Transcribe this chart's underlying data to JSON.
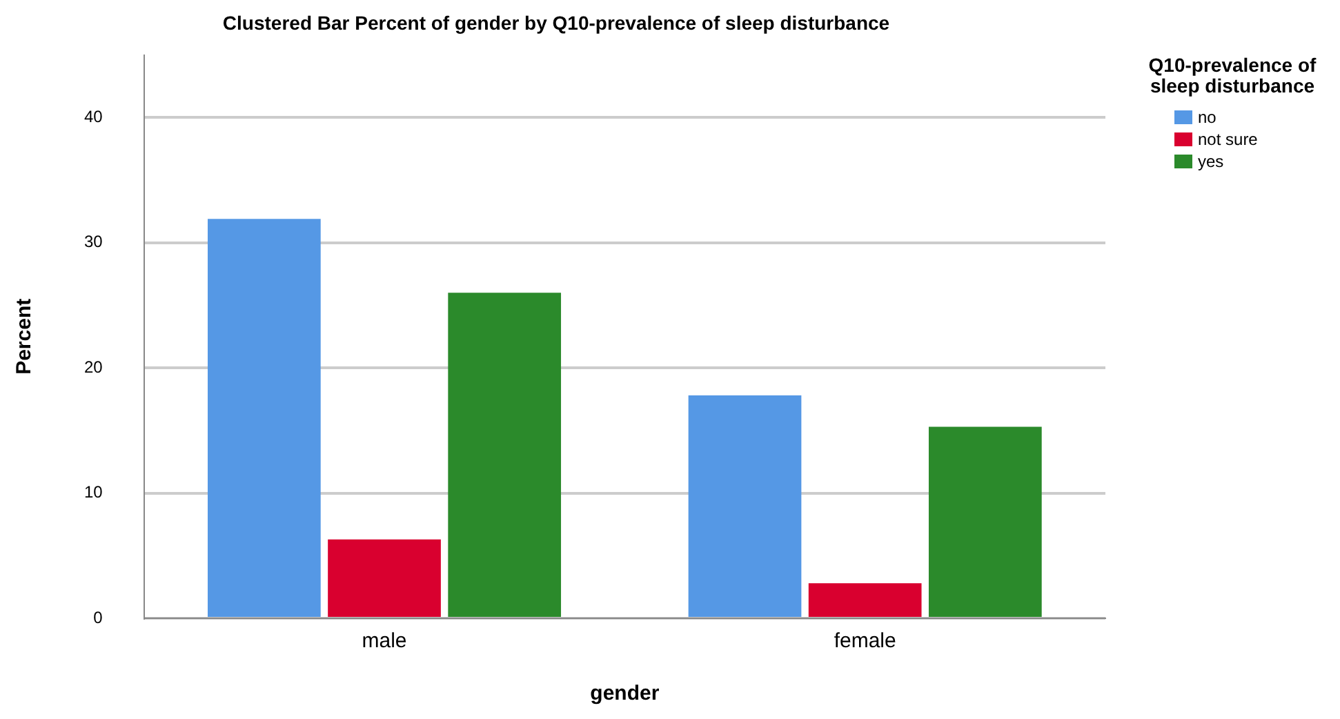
{
  "chart_data": {
    "type": "bar",
    "title": "Clustered Bar Percent of gender by Q10-prevalence of sleep disturbance",
    "xlabel": "gender",
    "ylabel": "Percent",
    "legend_title": "Q10-prevalence of sleep disturbance",
    "categories": [
      "male",
      "female"
    ],
    "series": [
      {
        "name": "no",
        "color": "#5598e5",
        "values": [
          31.9,
          17.8
        ]
      },
      {
        "name": "not sure",
        "color": "#d9002f",
        "values": [
          6.3,
          2.8
        ]
      },
      {
        "name": "yes",
        "color": "#2b8a2b",
        "values": [
          26.0,
          15.3
        ]
      }
    ],
    "ylim": [
      0,
      45
    ],
    "yticks": [
      0,
      10,
      20,
      30,
      40
    ],
    "grid": "y",
    "legend": "top right"
  }
}
